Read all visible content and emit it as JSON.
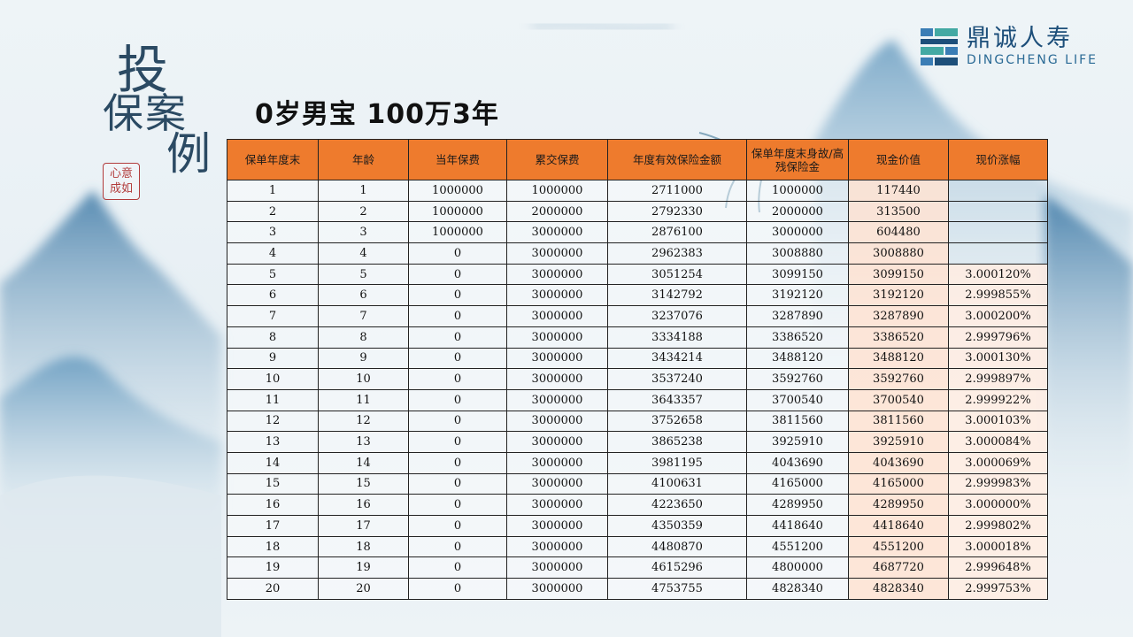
{
  "title_vertical": [
    "投",
    "保案",
    "例"
  ],
  "seal_text": "心意\n成如",
  "logo": {
    "cn": "鼎诚人寿",
    "en": "DINGCHENG LIFE",
    "colors": [
      "#3a7db5",
      "#43a9a3",
      "#1d4f7a"
    ]
  },
  "heading": "0岁男宝  100万3年",
  "table": {
    "headers": [
      "保单年度末",
      "年龄",
      "当年保费",
      "累交保费",
      "年度有效保险金额",
      "保单年度末身故/高残保险金",
      "现金价值",
      "现价涨幅"
    ],
    "header_color": "#ee7b2d",
    "rows": [
      [
        "1",
        "1",
        "1000000",
        "1000000",
        "2711000",
        "1000000",
        "117440",
        ""
      ],
      [
        "2",
        "2",
        "1000000",
        "2000000",
        "2792330",
        "2000000",
        "313500",
        ""
      ],
      [
        "3",
        "3",
        "1000000",
        "3000000",
        "2876100",
        "3000000",
        "604480",
        ""
      ],
      [
        "4",
        "4",
        "0",
        "3000000",
        "2962383",
        "3008880",
        "3008880",
        ""
      ],
      [
        "5",
        "5",
        "0",
        "3000000",
        "3051254",
        "3099150",
        "3099150",
        "3.000120%"
      ],
      [
        "6",
        "6",
        "0",
        "3000000",
        "3142792",
        "3192120",
        "3192120",
        "2.999855%"
      ],
      [
        "7",
        "7",
        "0",
        "3000000",
        "3237076",
        "3287890",
        "3287890",
        "3.000200%"
      ],
      [
        "8",
        "8",
        "0",
        "3000000",
        "3334188",
        "3386520",
        "3386520",
        "2.999796%"
      ],
      [
        "9",
        "9",
        "0",
        "3000000",
        "3434214",
        "3488120",
        "3488120",
        "3.000130%"
      ],
      [
        "10",
        "10",
        "0",
        "3000000",
        "3537240",
        "3592760",
        "3592760",
        "2.999897%"
      ],
      [
        "11",
        "11",
        "0",
        "3000000",
        "3643357",
        "3700540",
        "3700540",
        "2.999922%"
      ],
      [
        "12",
        "12",
        "0",
        "3000000",
        "3752658",
        "3811560",
        "3811560",
        "3.000103%"
      ],
      [
        "13",
        "13",
        "0",
        "3000000",
        "3865238",
        "3925910",
        "3925910",
        "3.000084%"
      ],
      [
        "14",
        "14",
        "0",
        "3000000",
        "3981195",
        "4043690",
        "4043690",
        "3.000069%"
      ],
      [
        "15",
        "15",
        "0",
        "3000000",
        "4100631",
        "4165000",
        "4165000",
        "2.999983%"
      ],
      [
        "16",
        "16",
        "0",
        "3000000",
        "4223650",
        "4289950",
        "4289950",
        "3.000000%"
      ],
      [
        "17",
        "17",
        "0",
        "3000000",
        "4350359",
        "4418640",
        "4418640",
        "2.999802%"
      ],
      [
        "18",
        "18",
        "0",
        "3000000",
        "4480870",
        "4551200",
        "4551200",
        "3.000018%"
      ],
      [
        "19",
        "19",
        "0",
        "3000000",
        "4615296",
        "4800000",
        "4687720",
        "2.999648%"
      ],
      [
        "20",
        "20",
        "0",
        "3000000",
        "4753755",
        "4828340",
        "4828340",
        "2.999753%"
      ]
    ]
  }
}
